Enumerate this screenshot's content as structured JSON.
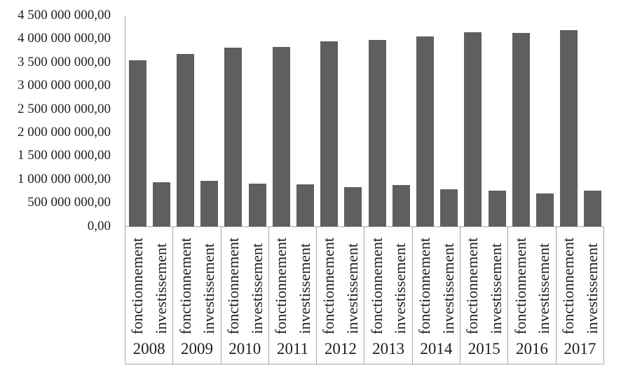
{
  "chart_data": {
    "type": "bar",
    "title": "",
    "xlabel": "",
    "ylabel": "",
    "grid": false,
    "legend": "none",
    "y_axis": {
      "min": 0,
      "max": 4500000000,
      "step": 500000000,
      "tick_labels": [
        "4 500 000 000,00",
        "4 000 000 000,00",
        "3 500 000 000,00",
        "3 000 000 000,00",
        "2 500 000 000,00",
        "2 000 000 000,00",
        "1 500 000 000,00",
        "1 000 000 000,00",
        "500 000 000,00",
        "0,00"
      ]
    },
    "categories": [
      "2008",
      "2009",
      "2010",
      "2011",
      "2012",
      "2013",
      "2014",
      "2015",
      "2016",
      "2017"
    ],
    "sub_categories": [
      "fonctionnement",
      "investissement"
    ],
    "series": [
      {
        "name": "fonctionnement",
        "values": [
          3550000000,
          3680000000,
          3820000000,
          3840000000,
          3950000000,
          3980000000,
          4060000000,
          4150000000,
          4130000000,
          4190000000
        ]
      },
      {
        "name": "investissement",
        "values": [
          940000000,
          980000000,
          920000000,
          900000000,
          840000000,
          880000000,
          800000000,
          760000000,
          710000000,
          760000000
        ]
      }
    ],
    "colors": {
      "bar": "#5f5f5f",
      "axis": "#a6a6a6",
      "text": "#1f1f1f",
      "background": "#ffffff"
    }
  }
}
